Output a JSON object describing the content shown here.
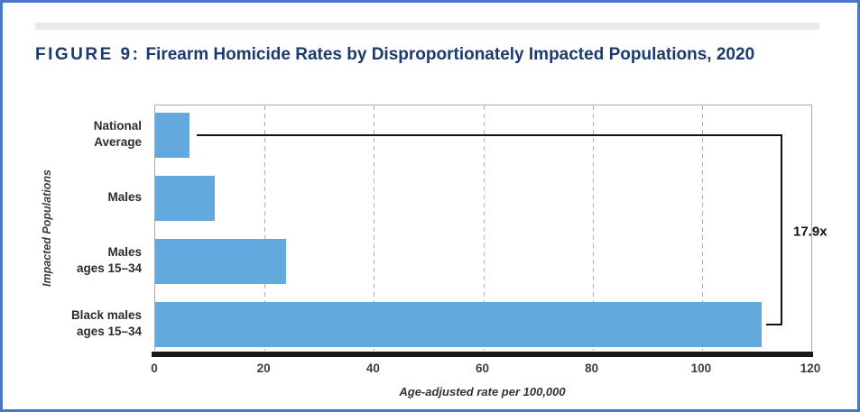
{
  "figure": {
    "title_prefix": "FIGURE 9:",
    "title_text": "Firearm Homicide Rates by Disproportionately Impacted Populations, 2020"
  },
  "chart_data": {
    "type": "bar",
    "orientation": "horizontal",
    "title": "Firearm Homicide Rates by Disproportionately Impacted Populations, 2020",
    "categories": [
      "National\nAverage",
      "Males",
      "Males\nages 15–34",
      "Black males\nages 15–34"
    ],
    "values": [
      6.2,
      10.9,
      23.9,
      111
    ],
    "xlabel": "Age-adjusted rate per 100,000",
    "ylabel": "Impacted Populations",
    "xlim": [
      0,
      120
    ],
    "xticks": [
      0,
      20,
      40,
      60,
      80,
      100,
      120
    ],
    "grid": "dashed-vertical-gridlines",
    "legend": "none",
    "annotation": {
      "label": "17.9x",
      "from_index": 0,
      "to_index": 3
    }
  },
  "colors": {
    "bar": "#64a9dd",
    "frame_border": "#4a76c8",
    "title_text": "#1c3a6e",
    "accent_bar": "#e9e9e9",
    "gridline": "#b1b1b1",
    "plot_border": "#a9a9a9",
    "axis_line": "#191919",
    "annotation_line": "#121212"
  }
}
